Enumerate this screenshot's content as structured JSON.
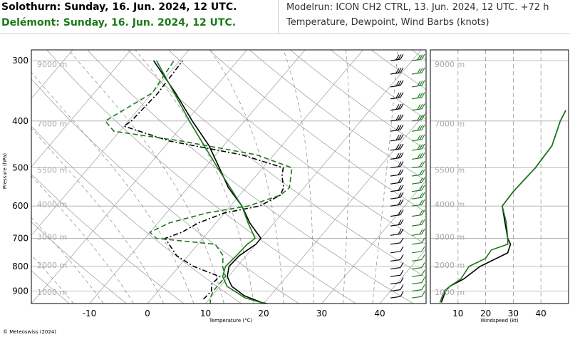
{
  "header": {
    "station_1": "Solothurn: Sunday, 16. Jun. 2024, 12 UTC.",
    "station_2": "Delémont: Sunday, 16. Jun. 2024, 12 UTC.",
    "model_run": "Modelrun: ICON CH2 CTRL, 13. Jun. 2024, 12 UTC. +72 h",
    "subtitle": "Temperature, Dewpoint, Wind Barbs (knots)"
  },
  "copyright": "© Meteoswiss (2024)",
  "colors": {
    "station_1": "#000000",
    "station_2": "#1a7a1a",
    "grid": "#aaaaaa"
  },
  "chart_data": [
    {
      "type": "line",
      "name": "skew-T",
      "xlabel": "Temperature (°C)",
      "ylabel": "Pressure (hPa)",
      "x_ticks": [
        "-10",
        "0",
        "10",
        "20",
        "30",
        "40"
      ],
      "y_ticks": [
        "300",
        "400",
        "500",
        "600",
        "700",
        "800",
        "900"
      ],
      "height_labels": [
        "9000 m",
        "7000 m",
        "5500 m",
        "4000 m",
        "3000 m",
        "2000 m",
        "1000 m"
      ],
      "series": [
        {
          "station": "Solothurn",
          "variable": "temperature",
          "points": [
            [
              962,
              22
            ],
            [
              950,
              19.5
            ],
            [
              920,
              15.5
            ],
            [
              880,
              12
            ],
            [
              840,
              9.8
            ],
            [
              800,
              8.6
            ],
            [
              760,
              8.8
            ],
            [
              720,
              10
            ],
            [
              700,
              10
            ],
            [
              650,
              5.8
            ],
            [
              600,
              2
            ],
            [
              550,
              -3
            ],
            [
              500,
              -7.5
            ],
            [
              450,
              -12.5
            ],
            [
              400,
              -19
            ],
            [
              350,
              -26
            ],
            [
              300,
              -34.5
            ]
          ]
        },
        {
          "station": "Solothurn",
          "variable": "dewpoint",
          "points": [
            [
              935,
              9
            ],
            [
              900,
              9.2
            ],
            [
              870,
              8.2
            ],
            [
              840,
              8.5
            ],
            [
              800,
              2.5
            ],
            [
              760,
              -2
            ],
            [
              700,
              -6.5
            ],
            [
              680,
              -4.5
            ],
            [
              650,
              -3
            ],
            [
              620,
              0
            ],
            [
              600,
              5
            ],
            [
              570,
              7
            ],
            [
              550,
              6.5
            ],
            [
              520,
              4.5
            ],
            [
              500,
              3.5
            ],
            [
              470,
              -5.5
            ],
            [
              440,
              -20
            ],
            [
              410,
              -30
            ],
            [
              400,
              -29.5
            ],
            [
              350,
              -29
            ],
            [
              300,
              -29.5
            ]
          ]
        },
        {
          "station": "Delémont",
          "variable": "temperature",
          "points": [
            [
              960,
              21
            ],
            [
              930,
              16
            ],
            [
              880,
              11.2
            ],
            [
              840,
              9
            ],
            [
              800,
              8
            ],
            [
              760,
              8.3
            ],
            [
              720,
              8.5
            ],
            [
              700,
              9
            ],
            [
              650,
              5.5
            ],
            [
              600,
              2
            ],
            [
              500,
              -7.8
            ],
            [
              400,
              -19.5
            ],
            [
              300,
              -34
            ]
          ]
        },
        {
          "station": "Delémont",
          "variable": "dewpoint",
          "points": [
            [
              960,
              11
            ],
            [
              930,
              10
            ],
            [
              900,
              9.5
            ],
            [
              880,
              9.5
            ],
            [
              840,
              9.5
            ],
            [
              800,
              7.5
            ],
            [
              760,
              6
            ],
            [
              720,
              3
            ],
            [
              700,
              -8
            ],
            [
              680,
              -10
            ],
            [
              650,
              -8
            ],
            [
              620,
              -3
            ],
            [
              600,
              3
            ],
            [
              570,
              7
            ],
            [
              550,
              7.5
            ],
            [
              500,
              5
            ],
            [
              470,
              -3
            ],
            [
              440,
              -18
            ],
            [
              420,
              -31
            ],
            [
              400,
              -34
            ],
            [
              350,
              -30
            ],
            [
              300,
              -31
            ]
          ]
        }
      ]
    },
    {
      "type": "line",
      "name": "wind-speed-profile",
      "xlabel": "Windspeed (kt)",
      "x_ticks": [
        "10",
        "20",
        "30",
        "40"
      ],
      "xlim": [
        0,
        50
      ],
      "series": [
        {
          "station": "Solothurn",
          "points": [
            [
              950,
              4
            ],
            [
              900,
              5.5
            ],
            [
              880,
              7
            ],
            [
              850,
              12
            ],
            [
              800,
              18
            ],
            [
              750,
              28
            ],
            [
              720,
              29
            ],
            [
              700,
              28
            ],
            [
              650,
              27
            ],
            [
              600,
              26
            ],
            [
              560,
              30
            ],
            [
              500,
              38
            ],
            [
              450,
              44
            ],
            [
              400,
              47
            ],
            [
              380,
              49
            ]
          ]
        },
        {
          "station": "Delémont",
          "points": [
            [
              950,
              3.5
            ],
            [
              900,
              5
            ],
            [
              880,
              7
            ],
            [
              850,
              11
            ],
            [
              800,
              14
            ],
            [
              770,
              20
            ],
            [
              740,
              22
            ],
            [
              720,
              28
            ],
            [
              700,
              28
            ],
            [
              650,
              27.5
            ],
            [
              600,
              26
            ],
            [
              560,
              30
            ],
            [
              500,
              38
            ],
            [
              450,
              44
            ],
            [
              400,
              47
            ],
            [
              380,
              49
            ]
          ]
        }
      ]
    }
  ]
}
